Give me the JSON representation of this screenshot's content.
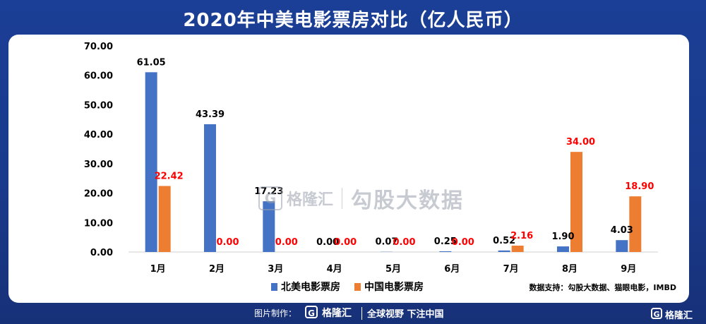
{
  "title": "2020年中美电影票房对比（亿人民币）",
  "colors": {
    "north_america": "#4472c4",
    "china": "#ed7d31",
    "china_label": "#ff0000",
    "na_label": "#000000"
  },
  "watermark": {
    "brand": "格隆汇",
    "text": "勾股大数据"
  },
  "footer": {
    "made_by_label": "图片制作：",
    "brand": "格隆汇",
    "slogan": "全球视野 下注中国",
    "corner_brand": "格隆汇"
  },
  "source_note": "数据支持：勾股大数据、猫眼电影，IMBD",
  "chart_data": {
    "type": "bar",
    "categories": [
      "1月",
      "2月",
      "3月",
      "4月",
      "5月",
      "6月",
      "7月",
      "8月",
      "9月"
    ],
    "series": [
      {
        "name": "北美电影票房",
        "values": [
          61.05,
          43.39,
          17.23,
          0.0,
          0.07,
          0.25,
          0.52,
          1.9,
          4.03
        ],
        "labels": [
          "61.05",
          "43.39",
          "17.23",
          "0.00",
          "0.07",
          "0.25",
          "0.52",
          "1.90",
          "4.03"
        ]
      },
      {
        "name": "中国电影票房",
        "values": [
          22.42,
          0.0,
          0.0,
          0.0,
          0.0,
          0.0,
          2.16,
          34.0,
          18.9
        ],
        "labels": [
          "22.42",
          "0.00",
          "0.00",
          "0.00",
          "0.00",
          "0.00",
          "2.16",
          "34.00",
          "18.90"
        ]
      }
    ],
    "yticks": [
      "0.00",
      "10.00",
      "20.00",
      "30.00",
      "40.00",
      "50.00",
      "60.00",
      "70.00"
    ],
    "ylim": [
      0,
      70
    ],
    "legend_position": "bottom"
  }
}
